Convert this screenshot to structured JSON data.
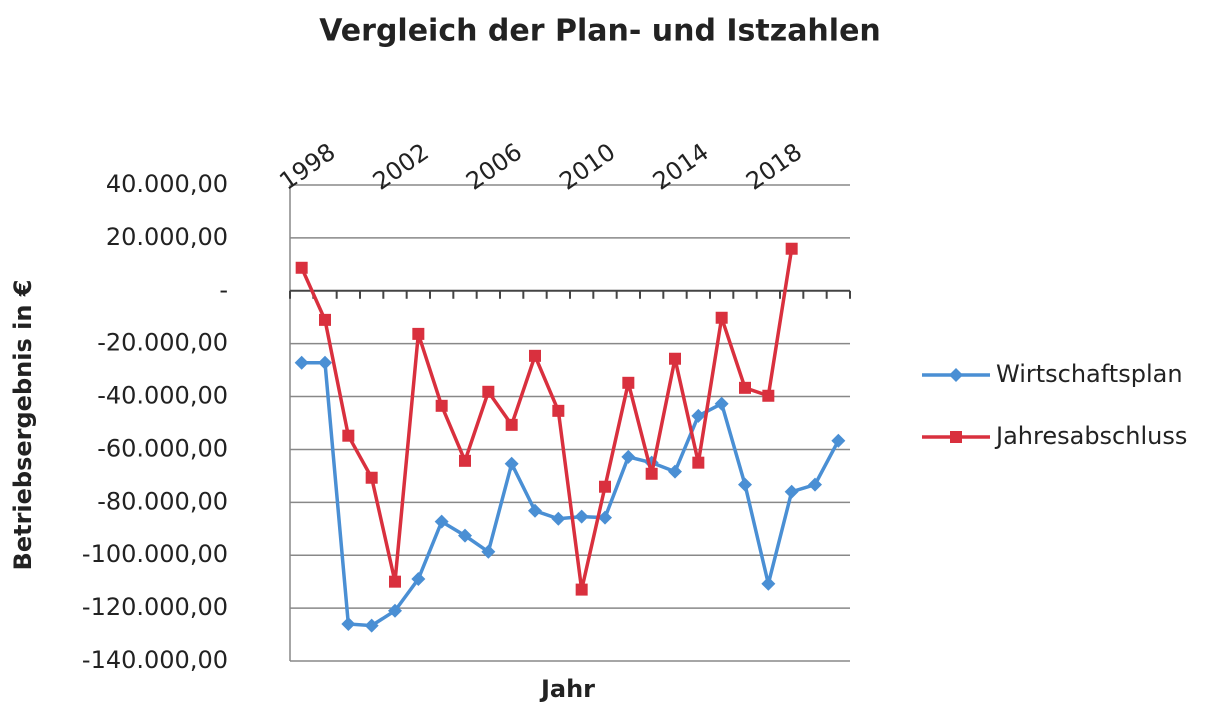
{
  "chart_data": {
    "type": "line",
    "title": "Vergleich der Plan- und Istzahlen",
    "x_label": "Jahr",
    "y_label": "Betriebsergebnis in €",
    "categories": [
      null,
      "1998",
      null,
      null,
      null,
      "2002",
      null,
      null,
      null,
      "2006",
      null,
      null,
      null,
      "2010",
      null,
      null,
      null,
      "2014",
      null,
      null,
      null,
      "2018",
      null,
      null
    ],
    "series": [
      {
        "name": "Wirtschaftsplan",
        "color": "#4a8fd4",
        "marker": "diamond",
        "values": [
          -27200,
          -27200,
          -126000,
          -126600,
          -121000,
          -109000,
          -87300,
          -92600,
          -98700,
          -65400,
          -83200,
          -86200,
          -85400,
          -85800,
          -62800,
          -65000,
          -68400,
          -47300,
          -42700,
          -73300,
          -110800,
          -76000,
          -73300,
          -56700
        ]
      },
      {
        "name": "Jahresabschluss",
        "color": "#d9303e",
        "marker": "square",
        "values": [
          8700,
          -11000,
          -54800,
          -70700,
          -110000,
          -16300,
          -43500,
          -64300,
          -38200,
          -50700,
          -24600,
          -45400,
          -113000,
          -74100,
          -34800,
          -69200,
          -25700,
          -65000,
          -10200,
          -36700,
          -39700,
          15900,
          null,
          null
        ]
      }
    ],
    "ylim": [
      -140000,
      40000
    ],
    "yticks": [
      {
        "value": -140000,
        "label": "-140.000,00"
      },
      {
        "value": -120000,
        "label": "-120.000,00"
      },
      {
        "value": -100000,
        "label": "-100.000,00"
      },
      {
        "value": -80000,
        "label": "-80.000,00"
      },
      {
        "value": -60000,
        "label": "-60.000,00"
      },
      {
        "value": -40000,
        "label": "-40.000,00"
      },
      {
        "value": -20000,
        "label": "-20.000,00"
      },
      {
        "value": 0,
        "label": "-"
      },
      {
        "value": 20000,
        "label": "20.000,00"
      },
      {
        "value": 40000,
        "label": "40.000,00"
      }
    ],
    "grid": true,
    "legend": "right"
  }
}
